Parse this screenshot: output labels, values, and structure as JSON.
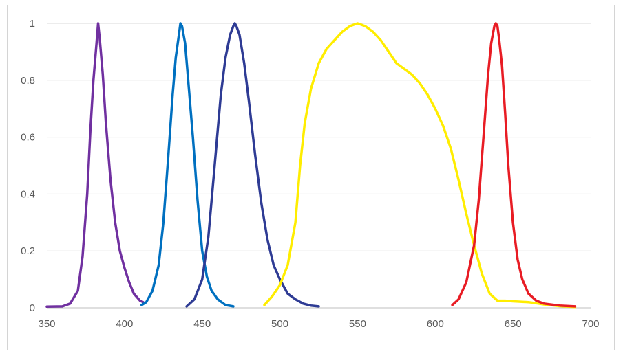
{
  "chart_data": {
    "type": "line",
    "title": "",
    "xlabel": "",
    "ylabel": "",
    "xlim": [
      350,
      700
    ],
    "ylim": [
      0,
      1
    ],
    "x_ticks": [
      350,
      400,
      450,
      500,
      550,
      600,
      650,
      700
    ],
    "x_tick_labels": [
      "350",
      "400",
      "450",
      "500",
      "550",
      "600",
      "650",
      "700"
    ],
    "y_ticks": [
      0,
      0.2,
      0.4,
      0.6,
      0.8,
      1
    ],
    "y_tick_labels": [
      "0",
      "0.2",
      "0.4",
      "0.6",
      "0.8",
      "1"
    ],
    "grid": "horizontal",
    "legend": "none",
    "series": [
      {
        "color": "#7030a0",
        "x": [
          350,
          360,
          365,
          370,
          373,
          376,
          378,
          380,
          382,
          383,
          384,
          386,
          388,
          391,
          394,
          397,
          400,
          403,
          406,
          410,
          412
        ],
        "y": [
          0.004,
          0.005,
          0.015,
          0.06,
          0.18,
          0.4,
          0.62,
          0.8,
          0.93,
          1.0,
          0.95,
          0.82,
          0.65,
          0.45,
          0.3,
          0.2,
          0.14,
          0.09,
          0.05,
          0.025,
          0.02
        ]
      },
      {
        "color": "#0070c0",
        "x": [
          411,
          414,
          418,
          422,
          425,
          428,
          431,
          433,
          435,
          436,
          437,
          439,
          441,
          444,
          447,
          450,
          453,
          456,
          460,
          465,
          470
        ],
        "y": [
          0.01,
          0.02,
          0.06,
          0.15,
          0.3,
          0.52,
          0.75,
          0.88,
          0.96,
          1.0,
          0.99,
          0.93,
          0.8,
          0.6,
          0.38,
          0.2,
          0.11,
          0.06,
          0.03,
          0.01,
          0.005
        ]
      },
      {
        "color": "#2e3b94",
        "x": [
          440,
          445,
          450,
          454,
          458,
          462,
          465,
          468,
          470,
          471,
          472,
          474,
          477,
          480,
          484,
          488,
          492,
          496,
          500,
          505,
          510,
          515,
          520,
          525
        ],
        "y": [
          0.005,
          0.03,
          0.1,
          0.25,
          0.5,
          0.75,
          0.88,
          0.96,
          0.99,
          1.0,
          0.99,
          0.96,
          0.86,
          0.73,
          0.54,
          0.37,
          0.24,
          0.15,
          0.1,
          0.05,
          0.03,
          0.015,
          0.008,
          0.005
        ]
      },
      {
        "color": "#ffed00",
        "x": [
          490,
          495,
          500,
          505,
          510,
          513,
          516,
          520,
          525,
          530,
          535,
          540,
          545,
          550,
          555,
          560,
          565,
          570,
          575,
          580,
          585,
          590,
          595,
          600,
          605,
          610,
          615,
          620,
          625,
          630,
          635,
          640,
          645,
          650,
          660,
          670,
          680,
          690
        ],
        "y": [
          0.01,
          0.04,
          0.08,
          0.15,
          0.3,
          0.5,
          0.65,
          0.77,
          0.86,
          0.91,
          0.94,
          0.97,
          0.99,
          1.0,
          0.99,
          0.97,
          0.94,
          0.9,
          0.86,
          0.84,
          0.82,
          0.79,
          0.75,
          0.7,
          0.64,
          0.56,
          0.45,
          0.33,
          0.22,
          0.12,
          0.05,
          0.025,
          0.025,
          0.023,
          0.02,
          0.012,
          0.006,
          0.003
        ]
      },
      {
        "color": "#e81c24",
        "x": [
          611,
          615,
          620,
          625,
          628,
          631,
          634,
          636,
          638,
          639,
          640,
          641,
          643,
          645,
          647,
          650,
          653,
          656,
          660,
          665,
          670,
          680,
          690
        ],
        "y": [
          0.01,
          0.03,
          0.09,
          0.22,
          0.38,
          0.6,
          0.82,
          0.93,
          0.99,
          1.0,
          0.99,
          0.95,
          0.85,
          0.68,
          0.5,
          0.3,
          0.17,
          0.1,
          0.05,
          0.025,
          0.015,
          0.008,
          0.005
        ]
      }
    ]
  }
}
